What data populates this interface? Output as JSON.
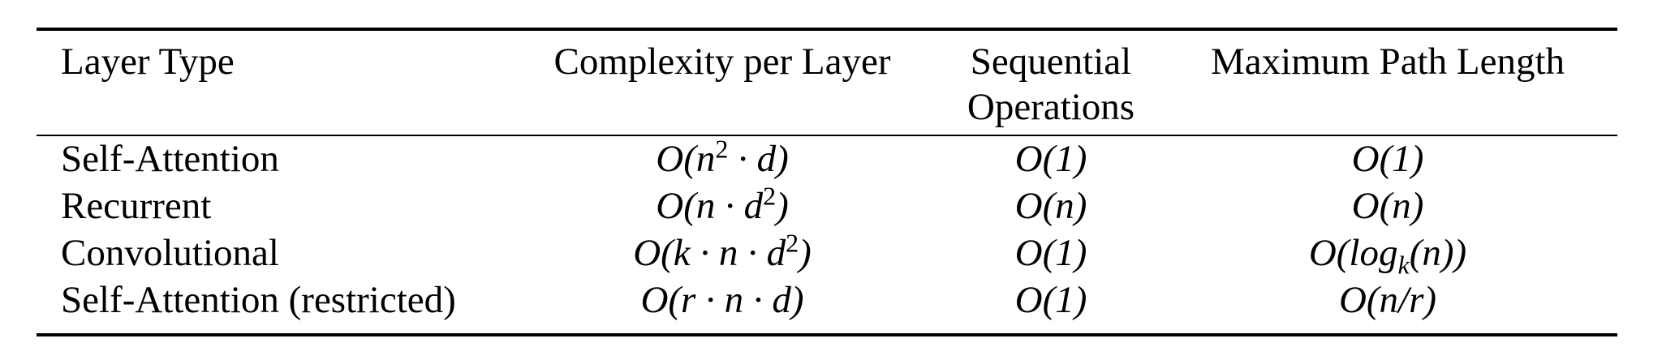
{
  "table": {
    "headers": [
      "Layer Type",
      "Complexity per Layer",
      "Sequential",
      "Operations",
      "Maximum Path Length"
    ],
    "rows": [
      {
        "layer_type": "Self-Attention",
        "complexity": {
          "pre": "O(n",
          "sup": "2",
          "post": " · d)"
        },
        "sequential": "O(1)",
        "path_length": {
          "pre": "O(1)",
          "sub": "",
          "post": ""
        }
      },
      {
        "layer_type": "Recurrent",
        "complexity": {
          "pre": "O(n · d",
          "sup": "2",
          "post": ")"
        },
        "sequential": "O(n)",
        "path_length": {
          "pre": "O(n)",
          "sub": "",
          "post": ""
        }
      },
      {
        "layer_type": "Convolutional",
        "complexity": {
          "pre": "O(k · n · d",
          "sup": "2",
          "post": ")"
        },
        "sequential": "O(1)",
        "path_length": {
          "pre": "O(log",
          "sub": "k",
          "post": "(n))"
        }
      },
      {
        "layer_type": "Self-Attention (restricted)",
        "complexity": {
          "pre": "O(r · n · d)",
          "sup": "",
          "post": ""
        },
        "sequential": "O(1)",
        "path_length": {
          "pre": "O(n/r)",
          "sub": "",
          "post": ""
        }
      }
    ]
  }
}
